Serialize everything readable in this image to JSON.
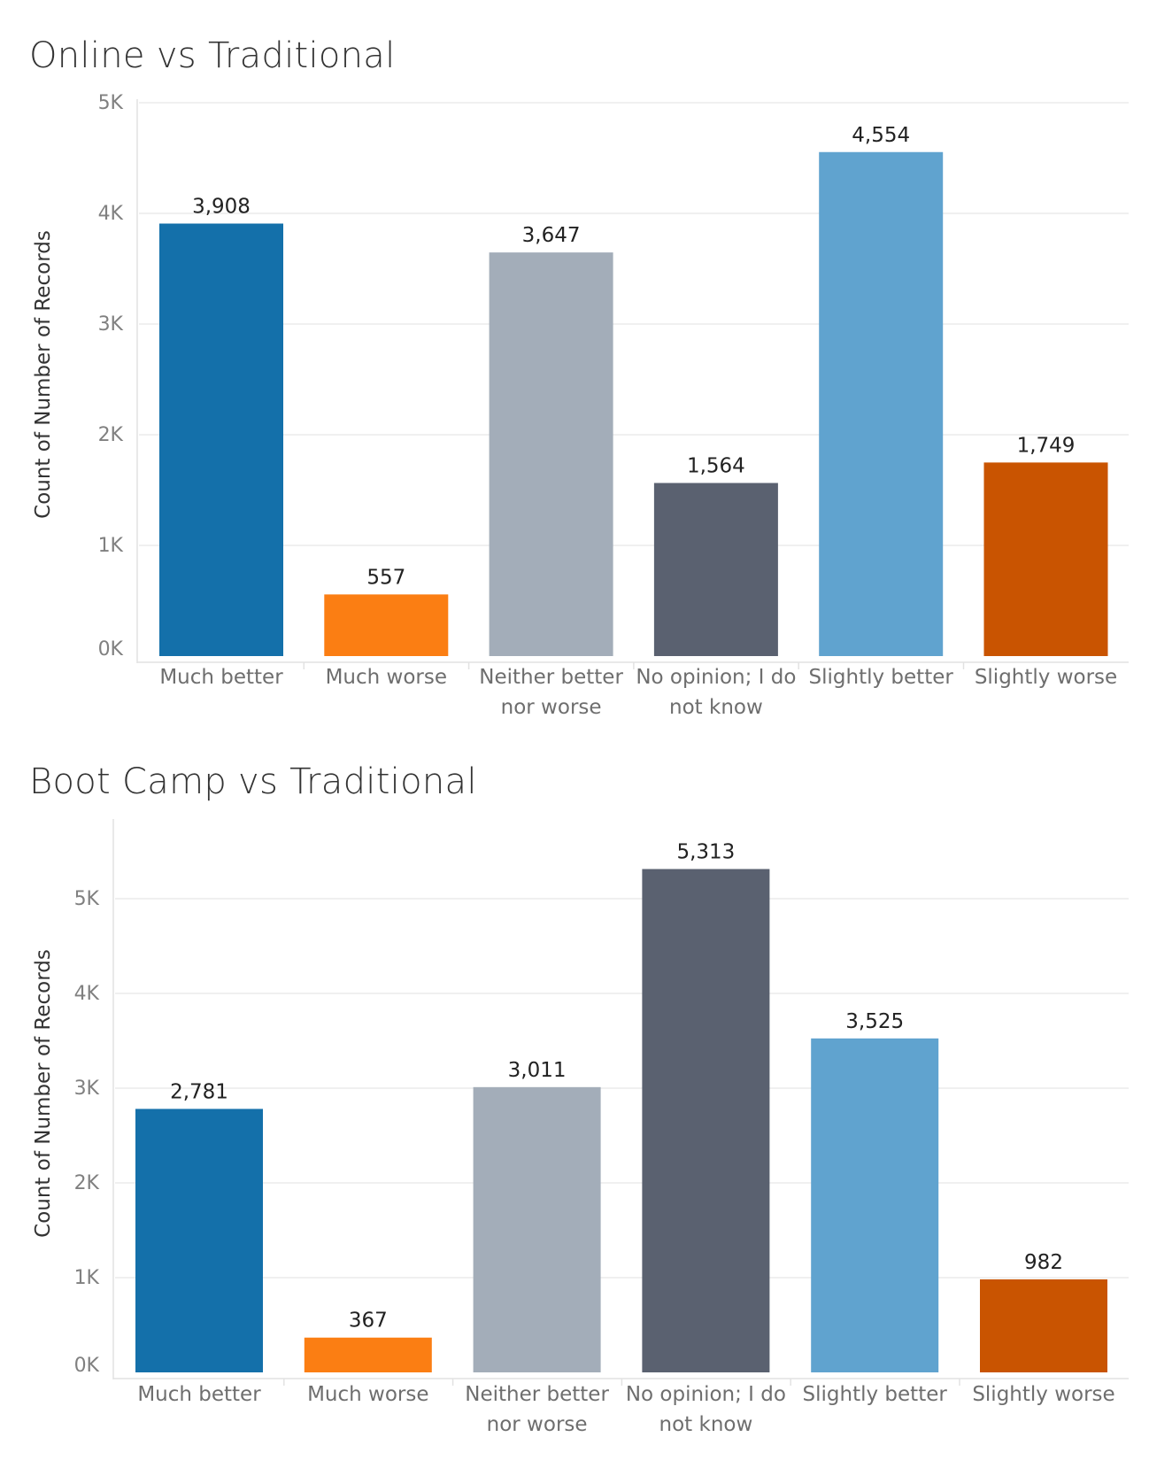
{
  "chart_data": [
    {
      "type": "bar",
      "title": "Online vs Traditional",
      "ylabel": "Count of Number of Records",
      "xlabel": "",
      "categories": [
        "Much better",
        "Much worse",
        "Neither better nor worse",
        "No opinion; I do not know",
        "Slightly better",
        "Slightly worse"
      ],
      "category_lines": [
        [
          "Much better"
        ],
        [
          "Much worse"
        ],
        [
          "Neither better",
          "nor worse"
        ],
        [
          "No opinion; I do",
          "not know"
        ],
        [
          "Slightly better"
        ],
        [
          "Slightly worse"
        ]
      ],
      "values": [
        3908,
        557,
        3647,
        1564,
        4554,
        1749
      ],
      "value_labels": [
        "3,908",
        "557",
        "3,647",
        "1,564",
        "4,554",
        "1,749"
      ],
      "colors": [
        "#1470aa",
        "#fb7e13",
        "#a3adb9",
        "#5a6170",
        "#60a3cf",
        "#c95401"
      ],
      "ylim": [
        0,
        5000
      ],
      "yticks": [
        0,
        1000,
        2000,
        3000,
        4000,
        5000
      ],
      "ytick_labels": [
        "0K",
        "1K",
        "2K",
        "3K",
        "4K",
        "5K"
      ],
      "grid": true,
      "legend": "none"
    },
    {
      "type": "bar",
      "title": "Boot Camp vs Traditional",
      "ylabel": "Count of Number of Records",
      "xlabel": "",
      "categories": [
        "Much better",
        "Much worse",
        "Neither better nor worse",
        "No opinion; I do not know",
        "Slightly better",
        "Slightly worse"
      ],
      "category_lines": [
        [
          "Much better"
        ],
        [
          "Much worse"
        ],
        [
          "Neither better",
          "nor worse"
        ],
        [
          "No opinion; I do",
          "not know"
        ],
        [
          "Slightly better"
        ],
        [
          "Slightly worse"
        ]
      ],
      "values": [
        2781,
        367,
        3011,
        5313,
        3525,
        982
      ],
      "value_labels": [
        "2,781",
        "367",
        "3,011",
        "5,313",
        "3,525",
        "982"
      ],
      "colors": [
        "#1470aa",
        "#fb7e13",
        "#a3adb9",
        "#5a6170",
        "#60a3cf",
        "#c95401"
      ],
      "ylim": [
        0,
        5000
      ],
      "yticks": [
        0,
        1000,
        2000,
        3000,
        4000,
        5000
      ],
      "ytick_labels": [
        "0K",
        "1K",
        "2K",
        "3K",
        "4K",
        "5K"
      ],
      "grid": true,
      "legend": "none"
    }
  ]
}
